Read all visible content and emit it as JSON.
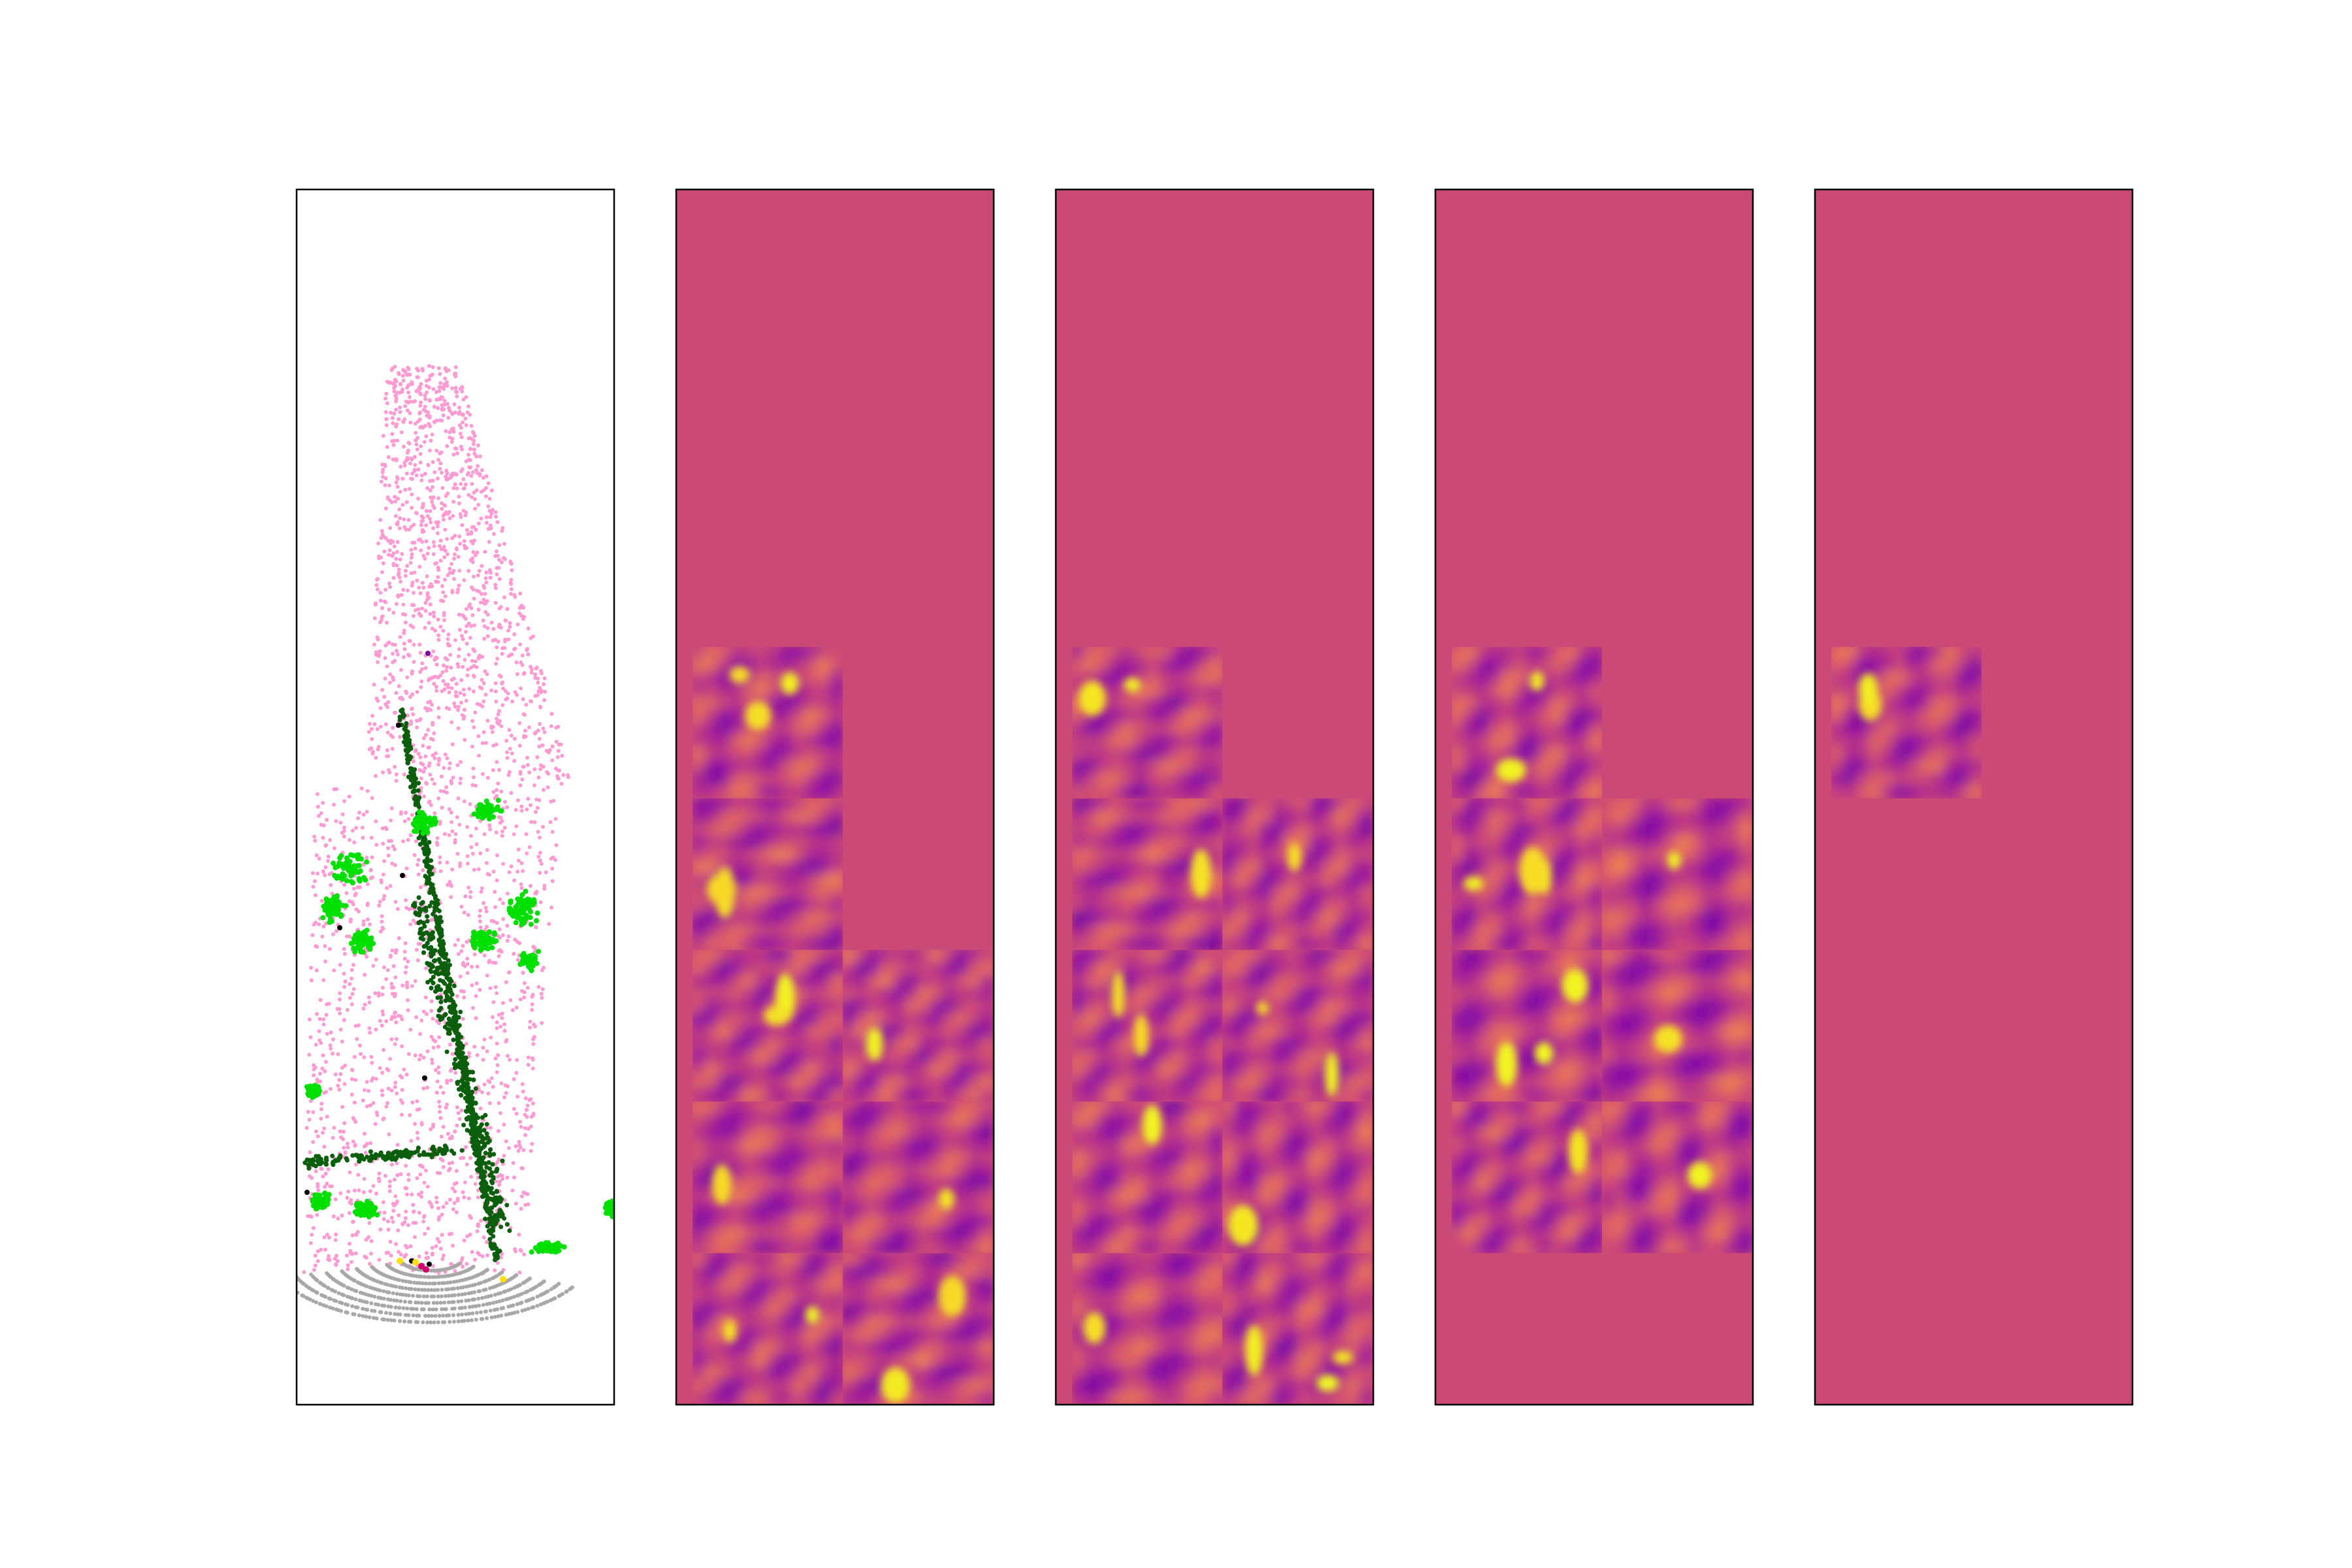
{
  "figure": {
    "background": "#ffffff"
  },
  "chart_data": [
    {
      "type": "scatter",
      "panel": 1,
      "title": "",
      "xlabel": "",
      "ylabel": "",
      "axes_visible": false,
      "grid": false,
      "legend": "none",
      "classes": [
        {
          "color": "#ff9bd2",
          "role": "dense ground/vegetation region"
        },
        {
          "color": "#0b5e0b",
          "role": "main V-shaped structure"
        },
        {
          "color": "#00e000",
          "role": "foliage clusters"
        },
        {
          "color": "#a8a8a8",
          "role": "ring pattern near sensor"
        },
        {
          "color": "#000000",
          "role": "sparse points"
        },
        {
          "color": "#ffe000",
          "role": "sparse points"
        },
        {
          "color": "#d4006a",
          "role": "sparse points"
        },
        {
          "color": "#7a00a0",
          "role": "isolated point"
        }
      ]
    },
    {
      "type": "heatmap",
      "panel": 2,
      "colormap": "plasma",
      "background_color": "#cb4977",
      "grid_rows": 5,
      "grid_cols": 2,
      "active_tiles": [
        [
          0,
          0
        ],
        [
          1,
          0
        ],
        [
          2,
          0
        ],
        [
          2,
          1
        ],
        [
          3,
          0
        ],
        [
          3,
          1
        ],
        [
          4,
          0
        ],
        [
          4,
          1
        ]
      ]
    },
    {
      "type": "heatmap",
      "panel": 3,
      "colormap": "plasma",
      "background_color": "#cb4977",
      "grid_rows": 5,
      "grid_cols": 2,
      "active_tiles": [
        [
          0,
          0
        ],
        [
          1,
          0
        ],
        [
          1,
          1
        ],
        [
          2,
          0
        ],
        [
          2,
          1
        ],
        [
          3,
          0
        ],
        [
          3,
          1
        ],
        [
          4,
          0
        ],
        [
          4,
          1
        ]
      ]
    },
    {
      "type": "heatmap",
      "panel": 4,
      "colormap": "plasma",
      "background_color": "#cb4977",
      "grid_rows": 5,
      "grid_cols": 2,
      "active_tiles": [
        [
          0,
          0
        ],
        [
          1,
          0
        ],
        [
          1,
          1
        ],
        [
          2,
          0
        ],
        [
          2,
          1
        ],
        [
          3,
          0
        ],
        [
          3,
          1
        ]
      ]
    },
    {
      "type": "heatmap",
      "panel": 5,
      "colormap": "plasma",
      "background_color": "#cb4977",
      "grid_rows": 5,
      "grid_cols": 2,
      "active_tiles": [
        [
          0,
          0
        ]
      ]
    }
  ]
}
